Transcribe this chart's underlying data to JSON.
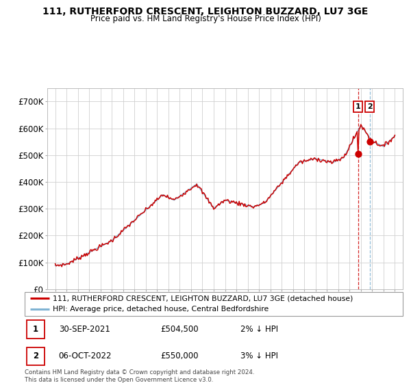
{
  "title": "111, RUTHERFORD CRESCENT, LEIGHTON BUZZARD, LU7 3GE",
  "subtitle": "Price paid vs. HM Land Registry's House Price Index (HPI)",
  "legend_line1": "111, RUTHERFORD CRESCENT, LEIGHTON BUZZARD, LU7 3GE (detached house)",
  "legend_line2": "HPI: Average price, detached house, Central Bedfordshire",
  "annotation1_label": "1",
  "annotation1_date": "30-SEP-2021",
  "annotation1_price": "£504,500",
  "annotation1_pct": "2% ↓ HPI",
  "annotation2_label": "2",
  "annotation2_date": "06-OCT-2022",
  "annotation2_price": "£550,000",
  "annotation2_pct": "3% ↓ HPI",
  "footer": "Contains HM Land Registry data © Crown copyright and database right 2024.\nThis data is licensed under the Open Government Licence v3.0.",
  "line1_color": "#cc0000",
  "line2_color": "#7fb3d3",
  "vline1_color": "#cc0000",
  "vline2_color": "#7fb3d3",
  "grid_color": "#d0d0d0",
  "ylim": [
    0,
    750000
  ],
  "yticks": [
    0,
    100000,
    200000,
    300000,
    400000,
    500000,
    600000,
    700000
  ],
  "ytick_labels": [
    "£0",
    "£100K",
    "£200K",
    "£300K",
    "£400K",
    "£500K",
    "£600K",
    "£700K"
  ],
  "sale1_year": 2021.75,
  "sale1_price": 504500,
  "sale2_year": 2022.77,
  "sale2_price": 550000,
  "xlim_left": 1994.3,
  "xlim_right": 2025.7
}
